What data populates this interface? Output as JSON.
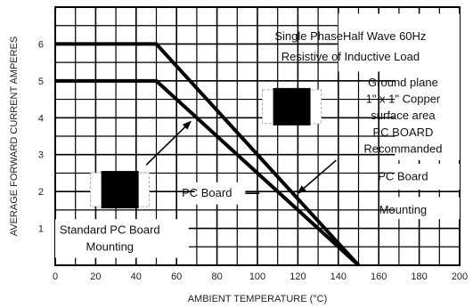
{
  "chart_data": {
    "type": "line",
    "xlabel": "AMBIENT TEMPERATURE (°C)",
    "ylabel": "AVERAGE FORWARD CURRENT AMPERES",
    "xlim": [
      0,
      200
    ],
    "ylim": [
      0,
      7
    ],
    "x_ticks": [
      0,
      20,
      40,
      60,
      80,
      100,
      120,
      140,
      160,
      180,
      200
    ],
    "y_ticks": [
      1,
      2,
      3,
      4,
      5,
      6
    ],
    "grid": true,
    "series": [
      {
        "name": "",
        "x": [
          0,
          50,
          150
        ],
        "y": [
          6,
          6,
          0
        ]
      },
      {
        "name": "",
        "x": [
          0,
          50,
          150
        ],
        "y": [
          5,
          5,
          0
        ]
      }
    ],
    "annotations": [
      {
        "text": "Single PhaseHalf Wave 60Hz",
        "x": 146,
        "y": 6.2
      },
      {
        "text": "Resistive of Inductive Load",
        "x": 146,
        "y": 5.65
      },
      {
        "text": "Ground plane",
        "x": 172,
        "y": 4.95
      },
      {
        "text": "1\" x 1\" Copper",
        "x": 172,
        "y": 4.5
      },
      {
        "text": "surface area",
        "x": 172,
        "y": 4.05
      },
      {
        "text": "PC BOARD",
        "x": 172,
        "y": 3.6
      },
      {
        "text": "Recommanded",
        "x": 172,
        "y": 3.15
      },
      {
        "text": "PC Board",
        "x": 172,
        "y": 2.4
      },
      {
        "text": "Mounting",
        "x": 172,
        "y": 1.5
      },
      {
        "text": "PC Board",
        "x": 75,
        "y": 1.95
      },
      {
        "text": "Standard PC Board",
        "x": 27,
        "y": 0.95
      },
      {
        "text": "Mounting",
        "x": 27,
        "y": 0.5
      }
    ]
  }
}
